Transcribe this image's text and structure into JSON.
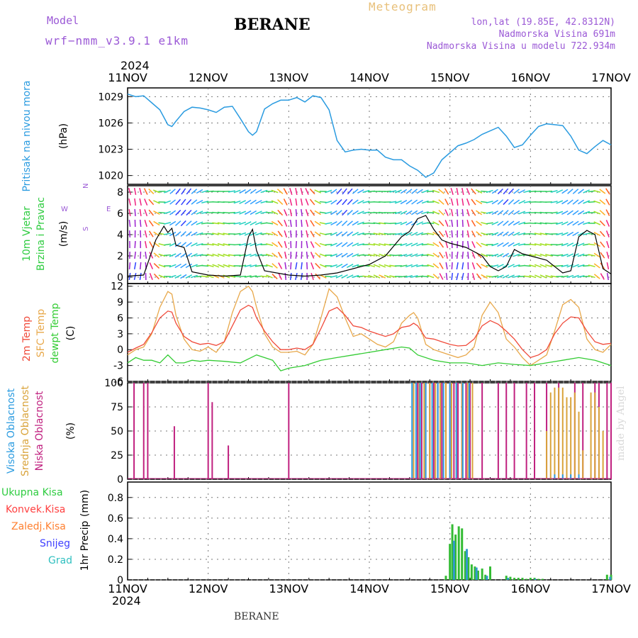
{
  "header": {
    "model_label": "Model",
    "model_name": "wrf−nmm_v3.9.1 e1km",
    "station": "BERANE",
    "meteogram_label": "Meteogram",
    "coords": "lon,lat (19.85E, 42.8312N)",
    "elevation": "Nadmorska Visina 691m",
    "model_elevation": "Nadmorska Visina u modelu 722.934m"
  },
  "footer": {
    "station": "BERANE",
    "watermark": "made by Angel"
  },
  "colors": {
    "pressure": "#2a9be0",
    "temp2m": "#f04a3a",
    "sfc_temp": "#e8a84a",
    "dewpoint": "#33cc33",
    "wind_speed": "#000000",
    "gust": "#f04a3a",
    "cloud_high": "#2a9be0",
    "cloud_mid": "#d9a33a",
    "cloud_low": "#c0207f",
    "precip_total": "#33bb33",
    "precip_grad": "#3399cc",
    "label_total": "#2ecc40",
    "label_konvek": "#ff4040",
    "label_zaledj": "#ff8030",
    "label_snijeg": "#4040ff",
    "label_grad": "#30c0c0"
  },
  "chart_data": [
    {
      "type": "line",
      "id": "pressure",
      "ylabel_name": "Pritisak na nivou mora",
      "ylabel_unit": "(hPa)",
      "x_year": "2024",
      "x_ticks": [
        "11NOV",
        "12NOV",
        "13NOV",
        "14NOV",
        "15NOV",
        "16NOV",
        "17NOV"
      ],
      "y_ticks": [
        1020,
        1023,
        1026,
        1029
      ],
      "ylim": [
        1019,
        1030
      ],
      "series": [
        {
          "x": [
            0,
            0.1,
            0.2,
            0.3,
            0.4,
            0.5,
            0.55,
            0.6,
            0.7,
            0.8,
            0.9,
            1.0,
            1.1,
            1.2,
            1.3,
            1.4,
            1.5,
            1.55,
            1.6,
            1.7,
            1.8,
            1.9,
            2.0,
            2.1,
            2.2,
            2.3,
            2.4,
            2.5,
            2.6,
            2.7,
            2.8,
            2.9,
            3.0,
            3.1,
            3.2,
            3.3,
            3.4,
            3.5,
            3.6,
            3.7,
            3.8,
            3.9,
            4.0,
            4.1,
            4.2,
            4.3,
            4.4,
            4.5,
            4.6,
            4.7,
            4.8,
            4.9,
            5.0,
            5.1,
            5.2,
            5.3,
            5.4,
            5.5,
            5.6,
            5.7,
            5.8,
            5.9,
            6.0
          ],
          "y": [
            1029.3,
            1029.0,
            1029.1,
            1028.3,
            1027.5,
            1025.8,
            1025.6,
            1026.2,
            1027.3,
            1027.8,
            1027.7,
            1027.5,
            1027.2,
            1027.8,
            1027.9,
            1026.5,
            1025.0,
            1024.6,
            1025.0,
            1027.6,
            1028.2,
            1028.6,
            1028.6,
            1028.9,
            1028.4,
            1029.1,
            1028.9,
            1027.5,
            1024.0,
            1022.7,
            1022.9,
            1023.0,
            1022.9,
            1022.9,
            1022.1,
            1021.8,
            1021.8,
            1021.1,
            1020.6,
            1019.8,
            1020.3,
            1021.8,
            1022.6,
            1023.4,
            1023.7,
            1024.1,
            1024.7,
            1025.1,
            1025.5,
            1024.5,
            1023.2,
            1023.5,
            1024.6,
            1025.6,
            1025.9,
            1025.8,
            1025.7,
            1024.5,
            1022.9,
            1022.5,
            1023.3,
            1024.0,
            1023.5
          ]
        }
      ]
    },
    {
      "type": "line",
      "id": "wind",
      "ylabel_name": "10m Vjetar",
      "ylabel_name2": "Brzina i Pravac",
      "ylabel_unit": "(m/s)",
      "compass": {
        "n": "N",
        "w": "W",
        "e": "E",
        "s": "S"
      },
      "y_ticks": [
        0,
        2,
        4,
        6,
        8
      ],
      "ylim": [
        -0.6,
        8.6
      ],
      "series": [
        {
          "name": "speed",
          "x": [
            0,
            0.2,
            0.35,
            0.45,
            0.5,
            0.55,
            0.6,
            0.7,
            0.8,
            1.0,
            1.2,
            1.4,
            1.5,
            1.55,
            1.6,
            1.7,
            2.0,
            2.2,
            2.4,
            2.6,
            2.8,
            3.0,
            3.2,
            3.4,
            3.5,
            3.6,
            3.7,
            3.8,
            3.9,
            4.0,
            4.1,
            4.2,
            4.4,
            4.5,
            4.6,
            4.7,
            4.8,
            4.9,
            5.0,
            5.2,
            5.4,
            5.5,
            5.6,
            5.7,
            5.8,
            5.9,
            6.0
          ],
          "y": [
            0.1,
            0.2,
            3.5,
            4.8,
            4.2,
            4.6,
            3.0,
            2.8,
            0.5,
            0.2,
            0.1,
            0.2,
            3.8,
            4.5,
            2.5,
            0.6,
            0.2,
            0.1,
            0.2,
            0.4,
            0.8,
            1.2,
            2.0,
            3.8,
            4.3,
            5.5,
            5.8,
            4.5,
            3.5,
            3.2,
            3.0,
            2.8,
            2.0,
            1.0,
            0.6,
            1.0,
            2.6,
            2.2,
            2.0,
            1.6,
            0.4,
            0.6,
            3.8,
            4.4,
            4.0,
            0.8,
            0.3
          ]
        }
      ]
    },
    {
      "type": "line",
      "id": "temperature",
      "ylabel_name": "2m Temp",
      "ylabel_name2": "SFC Temp",
      "ylabel_name3": "dewpt Temp",
      "ylabel_unit": "(C)",
      "y_ticks": [
        -6,
        -3,
        0,
        3,
        6,
        9,
        12
      ],
      "ylim": [
        -6,
        12.5
      ],
      "series": [
        {
          "name": "2m Temp",
          "x": [
            0,
            0.1,
            0.2,
            0.3,
            0.4,
            0.5,
            0.55,
            0.6,
            0.7,
            0.8,
            0.9,
            1.0,
            1.1,
            1.2,
            1.3,
            1.4,
            1.5,
            1.55,
            1.6,
            1.7,
            1.8,
            1.9,
            2.0,
            2.1,
            2.2,
            2.3,
            2.4,
            2.5,
            2.6,
            2.7,
            2.8,
            2.9,
            3.0,
            3.1,
            3.2,
            3.3,
            3.4,
            3.5,
            3.55,
            3.6,
            3.7,
            3.8,
            3.9,
            4.0,
            4.1,
            4.2,
            4.3,
            4.4,
            4.5,
            4.6,
            4.7,
            4.8,
            4.9,
            5.0,
            5.1,
            5.2,
            5.3,
            5.4,
            5.5,
            5.6,
            5.7,
            5.8,
            5.9,
            6.0
          ],
          "y": [
            -0.5,
            0.3,
            1.0,
            3.2,
            6.0,
            7.3,
            7.1,
            5.0,
            2.5,
            1.5,
            1.0,
            1.2,
            0.8,
            1.5,
            4.5,
            7.5,
            8.4,
            8.0,
            6.0,
            3.5,
            1.5,
            0.0,
            0.0,
            0.3,
            0.0,
            1.0,
            4.0,
            7.3,
            8.0,
            6.5,
            4.5,
            4.2,
            3.5,
            3.0,
            2.5,
            3.0,
            4.2,
            4.5,
            5.0,
            4.5,
            2.2,
            2.0,
            1.5,
            1.0,
            0.7,
            0.8,
            2.0,
            4.5,
            5.5,
            4.8,
            3.5,
            2.0,
            0.0,
            -1.5,
            -1.0,
            0.0,
            3.0,
            5.0,
            6.2,
            6.0,
            3.5,
            1.5,
            1.0,
            1.2
          ]
        },
        {
          "name": "SFC Temp",
          "x": [
            0,
            0.1,
            0.2,
            0.3,
            0.4,
            0.5,
            0.55,
            0.6,
            0.7,
            0.8,
            0.9,
            1.0,
            1.1,
            1.2,
            1.3,
            1.4,
            1.5,
            1.55,
            1.6,
            1.7,
            1.8,
            1.9,
            2.0,
            2.1,
            2.2,
            2.3,
            2.4,
            2.5,
            2.6,
            2.7,
            2.8,
            2.9,
            3.0,
            3.1,
            3.2,
            3.3,
            3.4,
            3.5,
            3.55,
            3.6,
            3.7,
            3.8,
            3.9,
            4.0,
            4.1,
            4.2,
            4.3,
            4.4,
            4.5,
            4.6,
            4.7,
            4.8,
            4.9,
            5.0,
            5.1,
            5.2,
            5.3,
            5.4,
            5.5,
            5.6,
            5.7,
            5.8,
            5.9,
            6.0
          ],
          "y": [
            -1.0,
            0.0,
            0.5,
            3.0,
            8.0,
            11.0,
            10.5,
            6.5,
            2.0,
            0.0,
            -0.3,
            0.5,
            -0.5,
            1.5,
            7.0,
            11.0,
            12.0,
            11.0,
            8.0,
            3.0,
            0.5,
            -0.5,
            -0.5,
            -0.3,
            -1.0,
            1.0,
            6.0,
            11.5,
            10.0,
            6.0,
            2.5,
            3.0,
            2.0,
            1.0,
            0.5,
            1.5,
            5.0,
            6.5,
            7.0,
            6.0,
            1.0,
            0.0,
            -0.5,
            -1.0,
            -1.5,
            -1.0,
            0.5,
            6.5,
            9.0,
            7.0,
            2.0,
            0.5,
            -1.5,
            -3.0,
            -2.0,
            -1.0,
            3.5,
            8.5,
            9.5,
            8.0,
            2.0,
            0.0,
            -0.5,
            1.0
          ]
        },
        {
          "name": "dewpt Temp",
          "x": [
            0,
            0.1,
            0.2,
            0.3,
            0.4,
            0.5,
            0.6,
            0.7,
            0.8,
            0.9,
            1.0,
            1.2,
            1.4,
            1.6,
            1.8,
            1.9,
            2.0,
            2.2,
            2.4,
            2.6,
            2.8,
            3.0,
            3.2,
            3.4,
            3.5,
            3.6,
            3.8,
            4.0,
            4.2,
            4.4,
            4.6,
            4.8,
            5.0,
            5.2,
            5.4,
            5.6,
            5.8,
            6.0
          ],
          "y": [
            -2.5,
            -1.5,
            -2.0,
            -2.0,
            -2.5,
            -1.0,
            -2.5,
            -2.5,
            -2.0,
            -2.2,
            -2.0,
            -2.2,
            -2.5,
            -1.0,
            -2.0,
            -4.0,
            -3.5,
            -3.0,
            -2.0,
            -1.5,
            -1.0,
            -0.5,
            0.0,
            0.5,
            0.3,
            -1.0,
            -2.0,
            -2.5,
            -2.5,
            -3.0,
            -2.5,
            -2.8,
            -3.0,
            -2.5,
            -2.0,
            -1.5,
            -2.0,
            -3.0
          ]
        }
      ]
    },
    {
      "type": "bar",
      "id": "clouds",
      "ylabel_name": "Visoka Oblacnost",
      "ylabel_name2": "Srednja Oblacnost",
      "ylabel_name3": "Niska Oblacnost",
      "ylabel_unit": "(%)",
      "y_ticks": [
        0,
        25,
        50,
        75,
        100
      ],
      "ylim": [
        0,
        100
      ],
      "series": [
        {
          "name": "Niska Oblacnost",
          "x": [
            0.08,
            0.2,
            0.25,
            0.58,
            1.0,
            1.05,
            1.25,
            2.0,
            3.55,
            3.6,
            3.65,
            3.7,
            3.75,
            3.8,
            3.85,
            3.9,
            3.95,
            4.0,
            4.05,
            4.1,
            4.15,
            4.2,
            4.25,
            4.4,
            4.6,
            4.7,
            4.8,
            4.95,
            5.05,
            5.2,
            5.35,
            5.45,
            5.55,
            5.65,
            5.8,
            5.85,
            5.95,
            6.0
          ],
          "y": [
            100,
            100,
            100,
            55,
            100,
            80,
            35,
            100,
            100,
            100,
            100,
            100,
            100,
            100,
            100,
            100,
            100,
            100,
            100,
            100,
            100,
            100,
            100,
            100,
            100,
            100,
            100,
            100,
            100,
            100,
            100,
            30,
            100,
            100,
            100,
            100,
            100,
            100
          ]
        },
        {
          "name": "Srednja Oblacnost",
          "x": [
            3.55,
            3.62,
            3.68,
            3.75,
            3.82,
            3.88,
            3.95,
            4.02,
            4.08,
            4.15,
            4.22,
            4.28,
            5.2,
            5.25,
            5.3,
            5.35,
            5.4,
            5.45,
            5.5,
            5.55,
            5.6,
            5.65,
            5.75,
            5.8,
            5.85,
            5.9
          ],
          "y": [
            100,
            100,
            100,
            100,
            100,
            100,
            100,
            100,
            100,
            100,
            100,
            100,
            50,
            90,
            95,
            95,
            95,
            85,
            85,
            90,
            70,
            30,
            90,
            90,
            75,
            50
          ]
        },
        {
          "name": "Visoka Oblacnost",
          "x": [
            3.53,
            3.58,
            3.63,
            3.7,
            3.78,
            3.85,
            3.92,
            4.0,
            4.08,
            4.16,
            4.24,
            5.3,
            5.4,
            5.5,
            5.6
          ],
          "y": [
            100,
            100,
            100,
            100,
            100,
            100,
            100,
            100,
            100,
            100,
            100,
            5,
            5,
            5,
            5
          ]
        }
      ]
    },
    {
      "type": "bar",
      "id": "precip",
      "ylabel_name": "1hr Precip",
      "ylabel_unit": "(mm)",
      "legend": [
        "Ukupna Kisa",
        "Konvek.Kisa",
        "Zaledj.Kisa",
        "Snijeg",
        "Grad"
      ],
      "y_ticks": [
        0,
        0.2,
        0.4,
        0.6,
        0.8
      ],
      "ylim": [
        0,
        0.95
      ],
      "series": [
        {
          "name": "Ukupna Kisa",
          "x": [
            3.95,
            4.0,
            4.03,
            4.07,
            4.11,
            4.15,
            4.19,
            4.23,
            4.27,
            4.31,
            4.35,
            4.4,
            4.44,
            4.5,
            4.7,
            4.75,
            4.8,
            4.85,
            4.9,
            4.95,
            5.0,
            5.05,
            5.1,
            5.15,
            5.95,
            6.0
          ],
          "y": [
            0.04,
            0.35,
            0.54,
            0.44,
            0.52,
            0.5,
            0.28,
            0.22,
            0.15,
            0.13,
            0.09,
            0.11,
            0.05,
            0.13,
            0.04,
            0.03,
            0.02,
            0.02,
            0.02,
            0.01,
            0.02,
            0.02,
            0.01,
            0.01,
            0.05,
            0.05
          ]
        },
        {
          "name": "Grad",
          "x": [
            4.05,
            4.21,
            4.33,
            4.46,
            4.72,
            5.06,
            5.99
          ],
          "y": [
            0.38,
            0.3,
            0.12,
            0.04,
            0.02,
            0.01,
            0.03
          ]
        }
      ]
    }
  ],
  "x_bottom_year": "2024"
}
